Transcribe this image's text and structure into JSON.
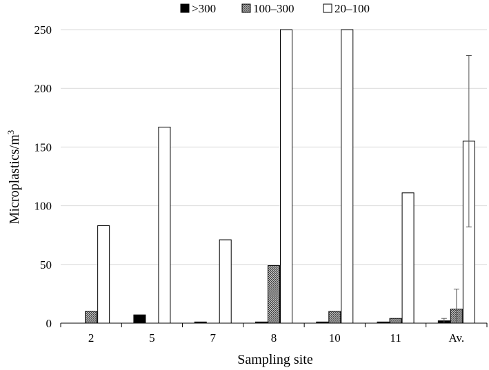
{
  "chart_data": {
    "type": "bar",
    "title": "",
    "xlabel": "Sampling site",
    "ylabel": "Microplastics/m",
    "ylabel_superscript": "3",
    "categories": [
      "2",
      "5",
      "7",
      "8",
      "10",
      "11",
      "Av."
    ],
    "ylim": [
      0,
      250
    ],
    "yticks": [
      0,
      50,
      100,
      150,
      200,
      250
    ],
    "grid": true,
    "legend_position": "top",
    "series": [
      {
        "name": ">300",
        "values": [
          0,
          7,
          1,
          1,
          1,
          1,
          2
        ],
        "error": [
          null,
          null,
          null,
          null,
          null,
          null,
          2
        ],
        "color": "#000000",
        "pattern": "solid"
      },
      {
        "name": "100–300",
        "values": [
          10,
          0,
          0,
          49,
          10,
          4,
          12
        ],
        "error": [
          null,
          null,
          null,
          null,
          null,
          null,
          17
        ],
        "color": "#808080",
        "pattern": "dotted"
      },
      {
        "name": "20–100",
        "values": [
          83,
          167,
          71,
          250,
          250,
          111,
          155
        ],
        "error": [
          null,
          null,
          null,
          null,
          null,
          null,
          73
        ],
        "color": "#ffffff",
        "pattern": "none"
      }
    ]
  }
}
